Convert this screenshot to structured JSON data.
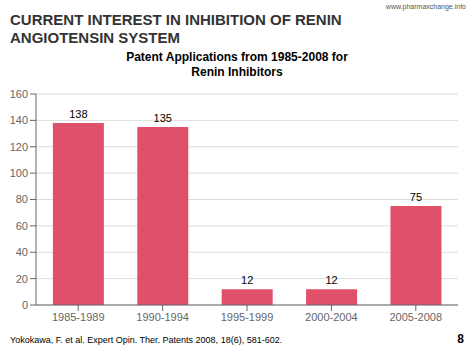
{
  "chart_data": {
    "type": "bar",
    "title": "Patent Applications from 1985-2008 for\nRenin Inhibitors",
    "categories": [
      "1985-1989",
      "1990-1994",
      "1995-1999",
      "2000-2004",
      "2005-2008"
    ],
    "values": [
      138,
      135,
      12,
      12,
      75
    ],
    "color": "#e0506a",
    "ylim": [
      0,
      160
    ],
    "yticks": [
      0,
      20,
      40,
      60,
      80,
      100,
      120,
      140,
      160
    ],
    "grid": true,
    "data_labels": true,
    "annotations": [
      "CURRENT INTEREST IN INHIBITION OF RENIN",
      "ANGIOTENSIN SYSTEM",
      "www.pharmaxchange.info",
      "Yokokawa, F. et al. Expert Opin. Ther. Patents 2008, 18(6), 581-602.",
      "8"
    ]
  }
}
